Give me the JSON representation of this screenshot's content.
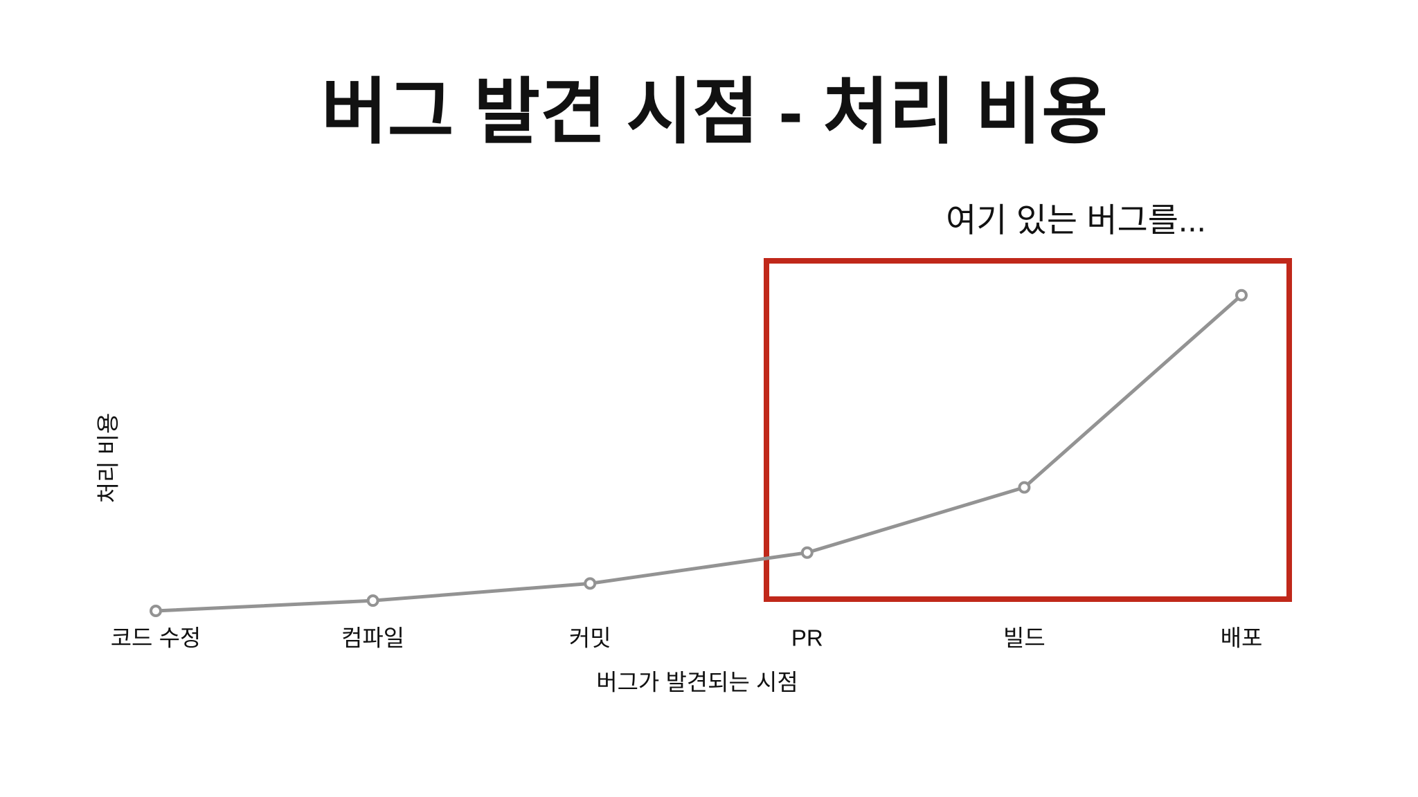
{
  "chart_data": {
    "type": "line",
    "title": "버그 발견 시점 - 처리 비용",
    "annotation": "여기 있는 버그를...",
    "x_label": "버그가 발견되는 시점",
    "y_label": "처리 비용",
    "categories": [
      "코드 수정",
      "컴파일",
      "커밋",
      "PR",
      "빌드",
      "배포"
    ],
    "values": [
      1,
      4,
      9,
      18,
      37,
      93
    ],
    "color": "#939393",
    "ylim": [
      0,
      100
    ]
  }
}
